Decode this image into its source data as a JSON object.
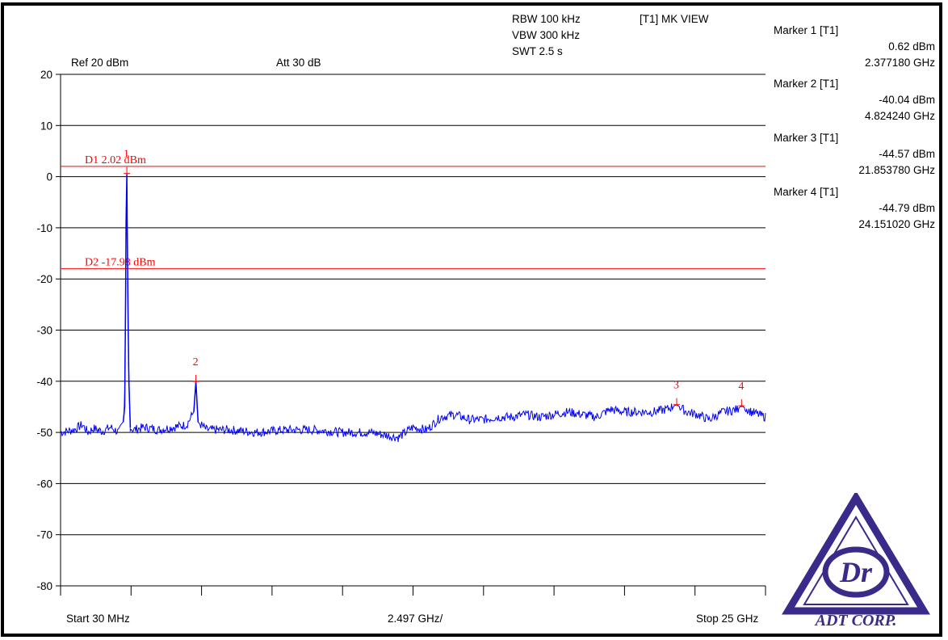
{
  "settings": {
    "rbw": "RBW 100 kHz",
    "vbw": "VBW 300 kHz",
    "swt": "SWT 2.5 s",
    "view": "[T1] MK VIEW",
    "ref": "Ref 20 dBm",
    "att": "Att  30 dB"
  },
  "x_labels": {
    "start": "Start 30 MHz",
    "div": "2.497 GHz/",
    "stop": "Stop 25 GHz"
  },
  "markers": [
    {
      "title": "Marker 1 [T1]",
      "level": "0.62 dBm",
      "freq": "2.377180 GHz"
    },
    {
      "title": "Marker 2 [T1]",
      "level": "-40.04 dBm",
      "freq": "4.824240 GHz"
    },
    {
      "title": "Marker 3 [T1]",
      "level": "-44.57 dBm",
      "freq": "21.853780 GHz"
    },
    {
      "title": "Marker 4 [T1]",
      "level": "-44.79 dBm",
      "freq": "24.151020 GHz"
    }
  ],
  "logo": {
    "text": "ADT CORP.",
    "color": "#3a2a8a"
  },
  "colors": {
    "trace": "#0000ff",
    "display_line": "#ff0000",
    "marker": "#ff0000",
    "grid": "#000000"
  },
  "chart_data": {
    "type": "line",
    "xlabel": "",
    "ylabel": "",
    "xlim": [
      0.03,
      25.0
    ],
    "ylim": [
      -80,
      20
    ],
    "x_unit": "GHz",
    "y_unit": "dBm",
    "y_ticks": [
      20,
      10,
      0,
      -10,
      -20,
      -30,
      -40,
      -50,
      -60,
      -70,
      -80
    ],
    "y_tick_labels": [
      "20",
      "10",
      "0",
      "-10",
      "-20",
      "-30",
      "-40",
      "-50",
      "-60",
      "-70",
      "-80"
    ],
    "display_lines": [
      {
        "label": "D1 2.02 dBm",
        "y": 2.02
      },
      {
        "label": "D2 -17.98 dBm",
        "y": -17.98
      }
    ],
    "markers": [
      {
        "label": "1",
        "x": 2.37718,
        "y": 0.62
      },
      {
        "label": "2",
        "x": 4.82424,
        "y": -40.04
      },
      {
        "label": "3",
        "x": 21.85378,
        "y": -44.57
      },
      {
        "label": "4",
        "x": 24.15102,
        "y": -44.79
      }
    ],
    "series": [
      {
        "x": [
          0.03,
          0.5,
          0.8,
          1.0,
          1.2,
          1.5,
          1.8,
          2.1,
          2.25,
          2.3,
          2.33,
          2.35,
          2.37718,
          2.39,
          2.42,
          2.45,
          2.5,
          2.6,
          3.0,
          3.5,
          4.0,
          4.5,
          4.75,
          4.82424,
          4.9,
          5.2,
          6.0,
          7.0,
          8.0,
          9.0,
          10.0,
          11.0,
          12.0,
          12.5,
          13.0,
          13.5,
          14.0,
          14.5,
          15.0,
          15.5,
          16.0,
          16.5,
          17.0,
          17.5,
          18.0,
          18.5,
          19.0,
          19.5,
          20.0,
          20.5,
          21.0,
          21.5,
          21.85378,
          22.2,
          22.6,
          23.0,
          23.5,
          24.0,
          24.15102,
          24.5,
          25.0
        ],
        "y": [
          -50,
          -49.5,
          -48.5,
          -50,
          -49.2,
          -49.8,
          -49,
          -50,
          -48,
          -45,
          -27,
          -9,
          0.62,
          -9,
          -27,
          -40,
          -49,
          -49.5,
          -49,
          -49.5,
          -49,
          -48.5,
          -46,
          -40.04,
          -48,
          -49.5,
          -49.5,
          -50,
          -49.5,
          -49.5,
          -50,
          -50,
          -51,
          -49,
          -49.5,
          -47,
          -46.5,
          -47.5,
          -47.5,
          -47,
          -47,
          -46.5,
          -47,
          -46.5,
          -46,
          -46.5,
          -47,
          -45.5,
          -46,
          -46,
          -46,
          -45.5,
          -44.57,
          -46,
          -46.5,
          -47.5,
          -46,
          -45.5,
          -44.79,
          -46,
          -47
        ]
      }
    ]
  }
}
